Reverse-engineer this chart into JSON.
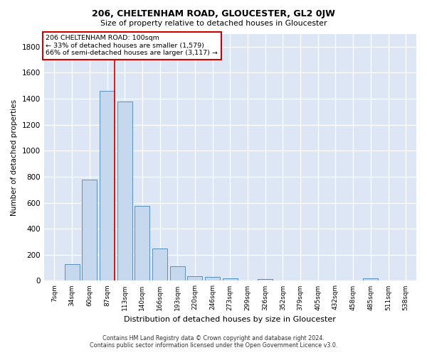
{
  "title": "206, CHELTENHAM ROAD, GLOUCESTER, GL2 0JW",
  "subtitle": "Size of property relative to detached houses in Gloucester",
  "xlabel": "Distribution of detached houses by size in Gloucester",
  "ylabel": "Number of detached properties",
  "bar_color": "#c5d8ed",
  "bar_edge_color": "#5a8fc0",
  "background_color": "#ffffff",
  "plot_bg_color": "#dce6f5",
  "categories": [
    "7sqm",
    "34sqm",
    "60sqm",
    "87sqm",
    "113sqm",
    "140sqm",
    "166sqm",
    "193sqm",
    "220sqm",
    "246sqm",
    "273sqm",
    "299sqm",
    "326sqm",
    "352sqm",
    "379sqm",
    "405sqm",
    "432sqm",
    "458sqm",
    "485sqm",
    "511sqm",
    "538sqm"
  ],
  "values": [
    5,
    130,
    780,
    1460,
    1380,
    575,
    250,
    110,
    35,
    30,
    20,
    0,
    15,
    0,
    0,
    0,
    0,
    0,
    20,
    0,
    0
  ],
  "ylim": [
    0,
    1900
  ],
  "yticks": [
    0,
    200,
    400,
    600,
    800,
    1000,
    1200,
    1400,
    1600,
    1800
  ],
  "vline_color": "#cc0000",
  "annotation_title": "206 CHELTENHAM ROAD: 100sqm",
  "annotation_line1": "← 33% of detached houses are smaller (1,579)",
  "annotation_line2": "66% of semi-detached houses are larger (3,117) →",
  "annotation_box_color": "#ffffff",
  "annotation_box_edge": "#cc0000",
  "footer1": "Contains HM Land Registry data © Crown copyright and database right 2024.",
  "footer2": "Contains public sector information licensed under the Open Government Licence v3.0."
}
